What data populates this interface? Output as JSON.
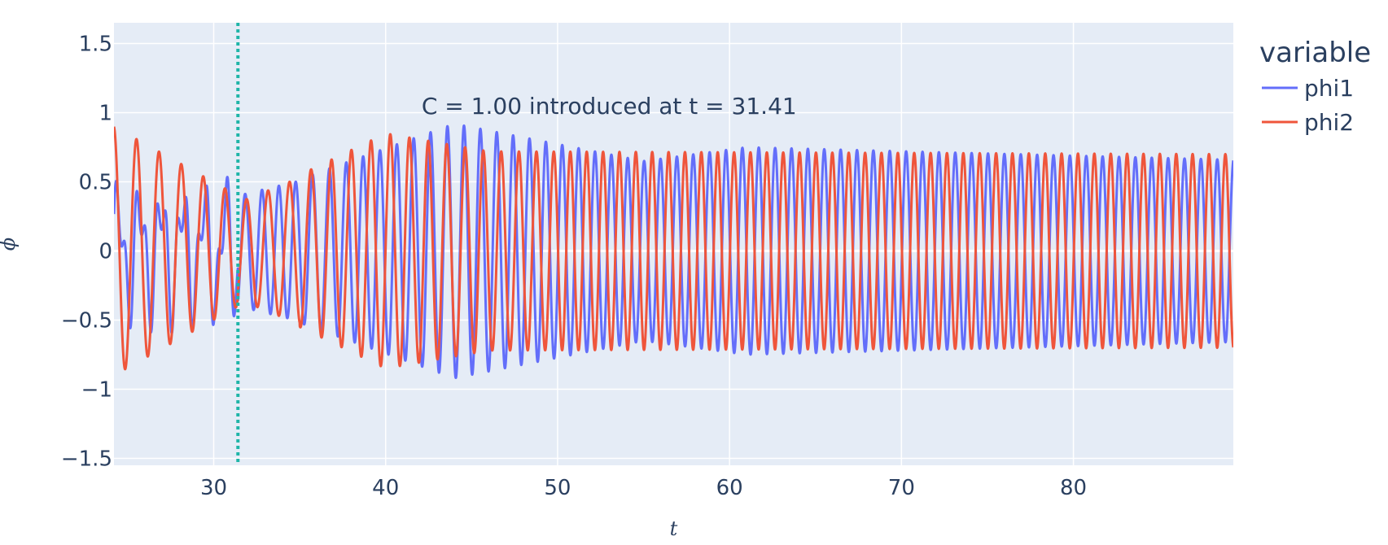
{
  "chart_data": {
    "type": "line",
    "xlabel": "t",
    "ylabel": "ϕ",
    "xlim": [
      24.2,
      89.3
    ],
    "ylim": [
      -1.55,
      1.65
    ],
    "x_ticks": [
      30,
      40,
      50,
      60,
      70,
      80
    ],
    "x_tick_labels": [
      "30",
      "40",
      "50",
      "60",
      "70",
      "80"
    ],
    "y_ticks": [
      -1.5,
      -1,
      -0.5,
      0,
      0.5,
      1,
      1.5
    ],
    "y_tick_labels": [
      "−1.5",
      "−1",
      "−0.5",
      "0",
      "0.5",
      "1",
      "1.5"
    ],
    "grid": true,
    "legend": {
      "title": "variable",
      "placement": "right-top",
      "entries": [
        "phi1",
        "phi2"
      ]
    },
    "series": [
      {
        "name": "phi1",
        "color": "#636efa"
      },
      {
        "name": "phi2",
        "color": "#ef553b"
      }
    ],
    "vline": {
      "x": 31.41,
      "color": "#1fb5a8",
      "style": "dotted"
    },
    "annotation": {
      "text": "C = 1.00 introduced at t = 31.41",
      "x": 53.0,
      "y": 1.05
    }
  }
}
